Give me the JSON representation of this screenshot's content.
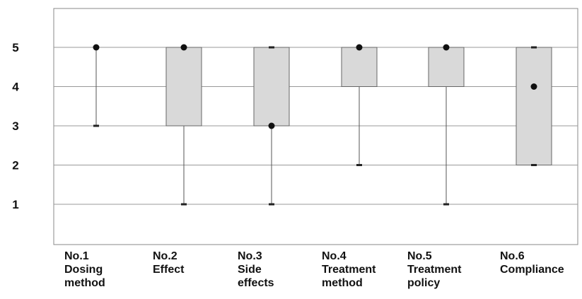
{
  "chart_data": {
    "type": "boxplot",
    "title": "",
    "xlabel": "",
    "ylabel": "",
    "ylim": [
      0,
      6
    ],
    "yticks": [
      "1",
      "2",
      "3",
      "4",
      "5"
    ],
    "grid": true,
    "categories": [
      [
        "No.1",
        "Dosing",
        "method"
      ],
      [
        "No.2",
        "Effect"
      ],
      [
        "No.3",
        "Side",
        "effects"
      ],
      [
        "No.4",
        "Treatment",
        "method"
      ],
      [
        "No.5",
        "Treatment",
        "policy"
      ],
      [
        "No.6",
        "Compliance"
      ]
    ],
    "boxes": [
      {
        "min": 3,
        "q1": 5,
        "q3": 5,
        "max": 5,
        "median": 5
      },
      {
        "min": 1,
        "q1": 3,
        "q3": 5,
        "max": 5,
        "median": 5
      },
      {
        "min": 1,
        "q1": 3,
        "q3": 5,
        "max": 5,
        "median": 3
      },
      {
        "min": 2,
        "q1": 4,
        "q3": 5,
        "max": 5,
        "median": 5
      },
      {
        "min": 1,
        "q1": 4,
        "q3": 5,
        "max": 5,
        "median": 5
      },
      {
        "min": 2,
        "q1": 2,
        "q3": 5,
        "max": 5,
        "median": 4
      }
    ],
    "colors": {
      "box_fill": "#d9d9d9",
      "box_stroke": "#666666",
      "whisker": "#555555",
      "median_dot": "#111111",
      "grid": "#999999"
    }
  }
}
